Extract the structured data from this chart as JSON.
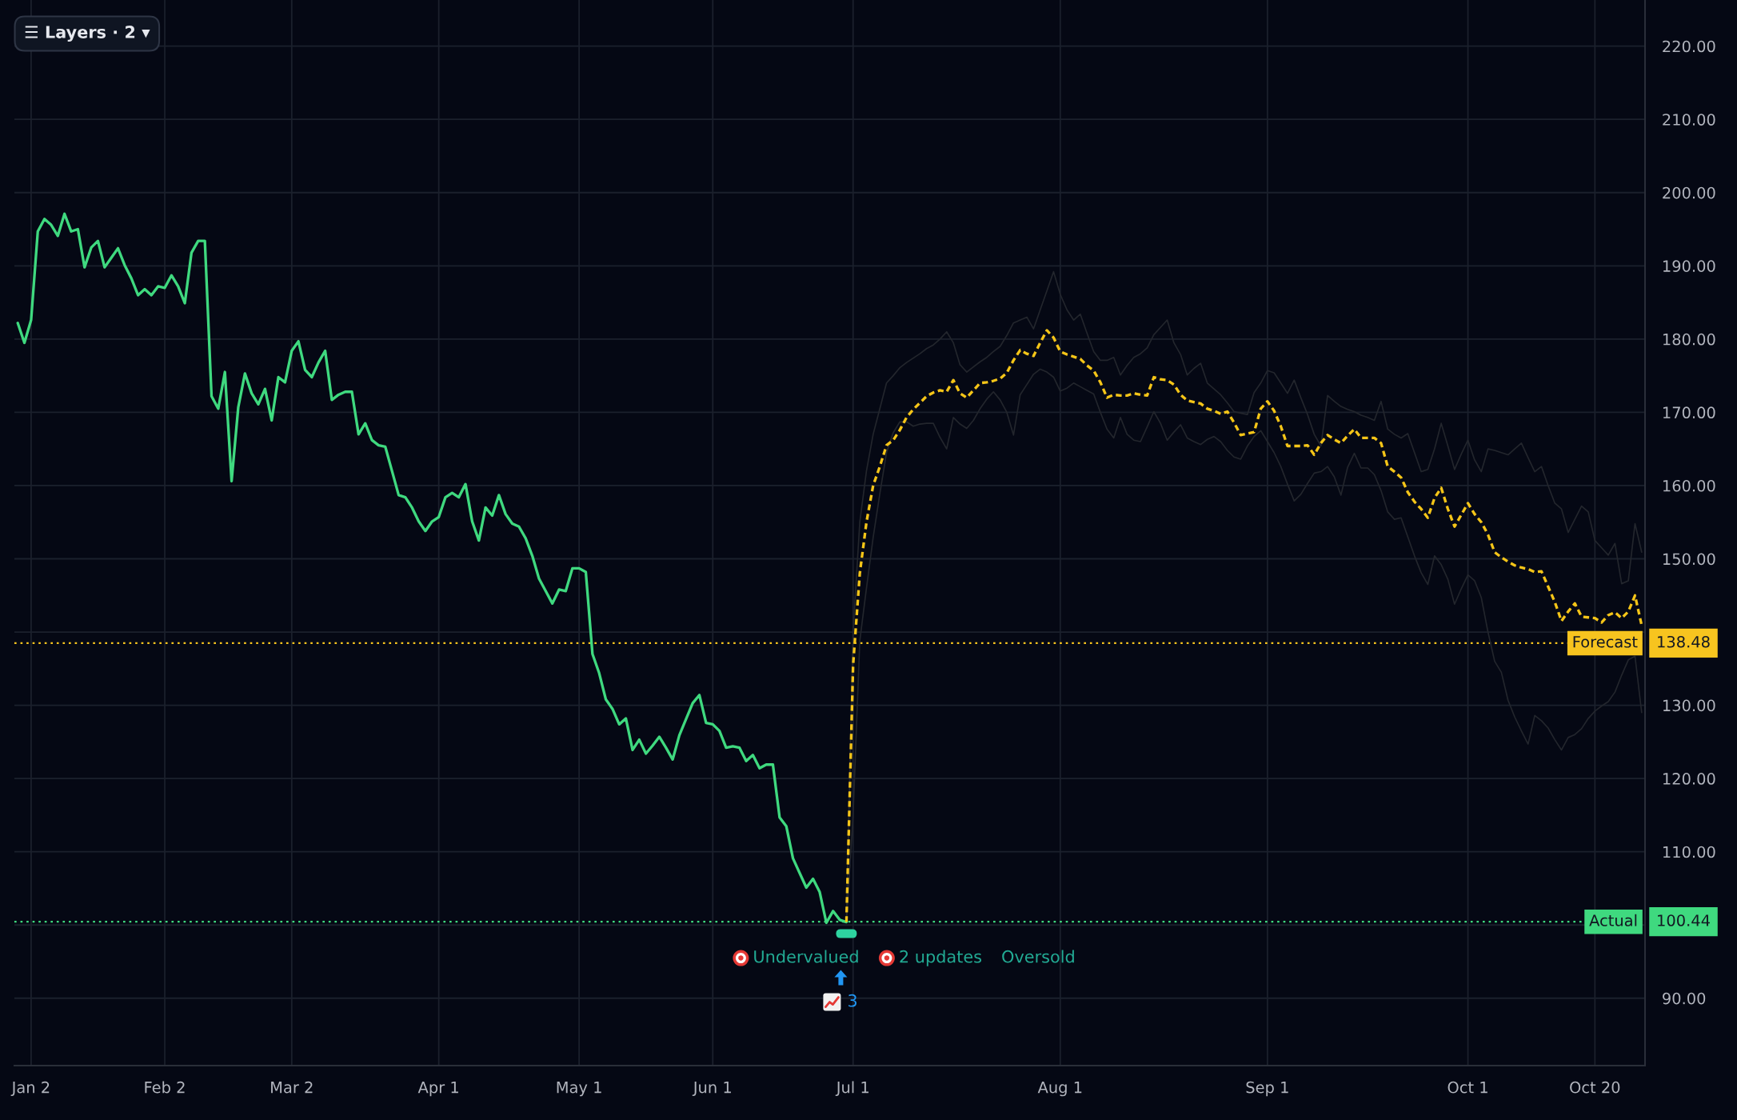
{
  "chart_data": {
    "type": "line",
    "categories": [
      null,
      null,
      "Jan 2",
      null,
      null,
      null,
      null,
      null,
      null,
      null,
      null,
      null,
      null,
      null,
      null,
      null,
      null,
      null,
      null,
      null,
      null,
      null,
      "Feb 2",
      null,
      null,
      null,
      null,
      null,
      null,
      null,
      null,
      null,
      null,
      null,
      null,
      null,
      null,
      null,
      null,
      null,
      null,
      "Mar 2",
      null,
      null,
      null,
      null,
      null,
      null,
      null,
      null,
      null,
      null,
      null,
      null,
      null,
      null,
      null,
      null,
      null,
      null,
      null,
      null,
      null,
      "Apr 1",
      null,
      null,
      null,
      null,
      null,
      null,
      null,
      null,
      null,
      null,
      null,
      null,
      null,
      null,
      null,
      null,
      null,
      null,
      null,
      null,
      "May 1",
      null,
      null,
      null,
      null,
      null,
      null,
      null,
      null,
      null,
      null,
      null,
      null,
      null,
      null,
      null,
      null,
      null,
      null,
      null,
      "Jun 1",
      null,
      null,
      null,
      null,
      null,
      null,
      null,
      null,
      null,
      null,
      null,
      null,
      null,
      null,
      null,
      null,
      null,
      null,
      null,
      null,
      "Jul 1",
      null,
      null,
      null,
      null,
      null,
      null,
      null,
      null,
      null,
      null,
      null,
      null,
      null,
      null,
      null,
      null,
      null,
      null,
      null,
      null,
      null,
      null,
      null,
      null,
      null,
      null,
      null,
      null,
      null,
      null,
      "Aug 1",
      null,
      null,
      null,
      null,
      null,
      null,
      null,
      null,
      null,
      null,
      null,
      null,
      null,
      null,
      null,
      null,
      null,
      null,
      null,
      null,
      null,
      null,
      null,
      null,
      null,
      null,
      null,
      null,
      null,
      null,
      "Sep 1",
      null,
      null,
      null,
      null,
      null,
      null,
      null,
      null,
      null,
      null,
      null,
      null,
      null,
      null,
      null,
      null,
      null,
      null,
      null,
      null,
      null,
      null,
      null,
      null,
      null,
      null,
      null,
      null,
      null,
      "Oct 1",
      null,
      null,
      null,
      null,
      null,
      null,
      null,
      null,
      null,
      null,
      null,
      null,
      null,
      null,
      null,
      null,
      null,
      null,
      "Oct 20",
      null,
      null,
      null,
      null,
      null,
      null,
      null
    ],
    "ylim": [
      80.8,
      226.3
    ],
    "yticks": [
      {
        "value": 90,
        "label": "90.00"
      },
      {
        "value": 100,
        "label": null
      },
      {
        "value": 110,
        "label": "110.00"
      },
      {
        "value": 120,
        "label": "120.00"
      },
      {
        "value": 130,
        "label": "130.00"
      },
      {
        "value": 140,
        "label": null
      },
      {
        "value": 150,
        "label": "150.00"
      },
      {
        "value": 160,
        "label": "160.00"
      },
      {
        "value": 170,
        "label": "170.00"
      },
      {
        "value": 180,
        "label": "180.00"
      },
      {
        "value": 190,
        "label": "190.00"
      },
      {
        "value": 200,
        "label": "200.00"
      },
      {
        "value": 210,
        "label": "210.00"
      },
      {
        "value": 220,
        "label": "220.00"
      }
    ],
    "grid": true,
    "series": [
      {
        "color": "#23262d",
        "line_style": "solid",
        "values": [
          null,
          null,
          null,
          null,
          null,
          null,
          null,
          null,
          null,
          null,
          null,
          null,
          null,
          null,
          null,
          null,
          null,
          null,
          null,
          null,
          null,
          null,
          null,
          null,
          null,
          null,
          null,
          null,
          null,
          null,
          null,
          null,
          null,
          null,
          null,
          null,
          null,
          null,
          null,
          null,
          null,
          null,
          null,
          null,
          null,
          null,
          null,
          null,
          null,
          null,
          null,
          null,
          null,
          null,
          null,
          null,
          null,
          null,
          null,
          null,
          null,
          null,
          null,
          null,
          null,
          null,
          null,
          null,
          null,
          null,
          null,
          null,
          null,
          null,
          null,
          null,
          null,
          null,
          null,
          null,
          null,
          null,
          null,
          null,
          null,
          null,
          null,
          null,
          null,
          null,
          null,
          null,
          null,
          null,
          null,
          null,
          null,
          null,
          null,
          null,
          null,
          null,
          null,
          null,
          null,
          null,
          null,
          null,
          null,
          null,
          null,
          null,
          null,
          null,
          null,
          null,
          null,
          null,
          null,
          null,
          null,
          null,
          null,
          null,
          100.4,
          140.0,
          155.0,
          162.0,
          167.0,
          170.5,
          174.0,
          175.0,
          176.1,
          176.8,
          177.4,
          178.0,
          178.7,
          179.2,
          180.0,
          181.0,
          179.5,
          176.5,
          175.5,
          176.2,
          176.9,
          177.5,
          178.3,
          179.0,
          180.5,
          182.2,
          182.6,
          183.0,
          181.4,
          184.0,
          186.6,
          189.2,
          186.1,
          184.0,
          182.6,
          183.4,
          180.8,
          178.3,
          177.1,
          177.1,
          177.5,
          175.1,
          176.4,
          177.5,
          178.0,
          178.8,
          180.6,
          181.6,
          182.6,
          179.5,
          177.9,
          175.1,
          176.0,
          176.7,
          174.0,
          173.2,
          172.4,
          171.3,
          170.1,
          169.9,
          169.7,
          172.7,
          174.0,
          175.7,
          175.4,
          174.0,
          172.6,
          174.4,
          172.0,
          169.7,
          167.0,
          165.4,
          172.3,
          171.5,
          170.8,
          170.4,
          170.1,
          169.6,
          169.3,
          168.9,
          171.5,
          167.7,
          167.0,
          166.5,
          167.1,
          164.5,
          161.9,
          162.2,
          165.0,
          168.5,
          165.4,
          162.2,
          164.3,
          166.2,
          163.5,
          161.9,
          165.0,
          164.8,
          164.5,
          164.2,
          165.0,
          165.8,
          163.8,
          161.9,
          162.6,
          160.0,
          157.6,
          156.8,
          153.6,
          155.4,
          157.2,
          156.4,
          152.5,
          151.5,
          150.5,
          152.1,
          146.6,
          147.0,
          154.8,
          150.9
        ]
      },
      {
        "color": "#23262d",
        "line_style": "solid",
        "values": [
          null,
          null,
          null,
          null,
          null,
          null,
          null,
          null,
          null,
          null,
          null,
          null,
          null,
          null,
          null,
          null,
          null,
          null,
          null,
          null,
          null,
          null,
          null,
          null,
          null,
          null,
          null,
          null,
          null,
          null,
          null,
          null,
          null,
          null,
          null,
          null,
          null,
          null,
          null,
          null,
          null,
          null,
          null,
          null,
          null,
          null,
          null,
          null,
          null,
          null,
          null,
          null,
          null,
          null,
          null,
          null,
          null,
          null,
          null,
          null,
          null,
          null,
          null,
          null,
          null,
          null,
          null,
          null,
          null,
          null,
          null,
          null,
          null,
          null,
          null,
          null,
          null,
          null,
          null,
          null,
          null,
          null,
          null,
          null,
          null,
          null,
          null,
          null,
          null,
          null,
          null,
          null,
          null,
          null,
          null,
          null,
          null,
          null,
          null,
          null,
          null,
          null,
          null,
          null,
          null,
          null,
          null,
          null,
          null,
          null,
          null,
          null,
          null,
          null,
          null,
          null,
          null,
          null,
          null,
          null,
          null,
          null,
          null,
          null,
          100.4,
          115.0,
          138.8,
          146.0,
          152.9,
          158.9,
          164.5,
          167.2,
          168.7,
          168.7,
          168.1,
          168.4,
          168.5,
          168.5,
          166.6,
          165.0,
          169.3,
          168.4,
          167.8,
          168.9,
          170.5,
          171.8,
          172.8,
          171.7,
          170.0,
          166.9,
          172.4,
          173.8,
          175.2,
          175.9,
          175.5,
          174.8,
          172.9,
          173.3,
          174.0,
          173.5,
          173.0,
          172.5,
          170.0,
          167.7,
          166.5,
          169.3,
          167.0,
          166.2,
          166.0,
          168.0,
          170.1,
          168.5,
          166.2,
          167.3,
          168.3,
          166.5,
          166.0,
          165.6,
          166.3,
          166.7,
          166.0,
          164.8,
          163.9,
          163.6,
          165.4,
          166.7,
          167.5,
          166.0,
          164.5,
          162.6,
          160.2,
          157.9,
          158.8,
          160.3,
          161.7,
          161.9,
          162.6,
          161.2,
          158.7,
          162.5,
          164.4,
          162.4,
          162.4,
          161.5,
          159.3,
          156.4,
          155.4,
          155.6,
          153.0,
          150.4,
          148.1,
          146.5,
          150.4,
          149.2,
          147.2,
          143.8,
          145.9,
          147.8,
          147.0,
          144.7,
          140.0,
          136.0,
          134.5,
          130.7,
          128.4,
          126.5,
          124.7,
          128.6,
          127.9,
          126.9,
          125.3,
          123.9,
          125.6,
          126.0,
          126.8,
          128.2,
          129.2,
          129.9,
          130.5,
          131.8,
          134.1,
          136.2,
          136.7,
          129.0
        ]
      },
      {
        "color": "#3fd97f",
        "line_style": "solid",
        "values": [
          182.2,
          179.5,
          182.6,
          194.7,
          196.4,
          195.6,
          194.1,
          197.1,
          194.7,
          195.0,
          189.8,
          192.5,
          193.4,
          189.8,
          191.1,
          192.4,
          190.1,
          188.3,
          186.0,
          186.8,
          186.0,
          187.2,
          187.0,
          188.7,
          187.2,
          184.9,
          191.8,
          193.4,
          193.4,
          172.2,
          170.5,
          175.5,
          160.6,
          170.7,
          175.3,
          172.6,
          171.1,
          173.2,
          168.9,
          174.8,
          174.1,
          178.4,
          179.7,
          175.8,
          174.8,
          176.8,
          178.4,
          171.7,
          172.4,
          172.8,
          172.8,
          167.0,
          168.5,
          166.2,
          165.5,
          165.3,
          162.0,
          158.7,
          158.4,
          157.0,
          155.1,
          153.8,
          155.1,
          155.7,
          158.4,
          159.0,
          158.4,
          160.2,
          155.1,
          152.5,
          157.0,
          155.9,
          158.7,
          156.1,
          154.8,
          154.4,
          152.8,
          150.4,
          147.3,
          145.6,
          143.9,
          145.8,
          145.6,
          148.7,
          148.7,
          148.2,
          137.0,
          134.4,
          130.8,
          129.5,
          127.4,
          128.2,
          123.9,
          125.3,
          123.4,
          124.5,
          125.7,
          124.2,
          122.6,
          125.9,
          128.1,
          130.3,
          131.4,
          127.6,
          127.4,
          126.5,
          124.2,
          124.4,
          124.2,
          122.4,
          123.2,
          121.4,
          121.9,
          121.9,
          114.7,
          113.5,
          109.1,
          107.1,
          105.1,
          106.3,
          104.5,
          100.3,
          101.9,
          100.7,
          100.4,
          null,
          null,
          null,
          null,
          null,
          null,
          null,
          null,
          null,
          null,
          null,
          null,
          null,
          null,
          null,
          null,
          null,
          null,
          null,
          null,
          null,
          null,
          null,
          null,
          null,
          null,
          null,
          null,
          null,
          null,
          null,
          null,
          null,
          null,
          null,
          null,
          null,
          null,
          null,
          null,
          null,
          null,
          null,
          null,
          null,
          null,
          null,
          null,
          null,
          null,
          null,
          null,
          null,
          null,
          null,
          null,
          null,
          null,
          null,
          null,
          null,
          null,
          null,
          null,
          null,
          null,
          null,
          null,
          null,
          null,
          null,
          null,
          null,
          null,
          null,
          null,
          null,
          null,
          null,
          null,
          null,
          null,
          null,
          null,
          null,
          null,
          null,
          null,
          null,
          null,
          null,
          null,
          null,
          null,
          null,
          null,
          null,
          null,
          null,
          null,
          null,
          null,
          null,
          null,
          null,
          null,
          null,
          null,
          null,
          null,
          null,
          null,
          null,
          null,
          null,
          null,
          null,
          null,
          null
        ]
      },
      {
        "color": "#f5c518",
        "line_style": "dashed",
        "values": [
          null,
          null,
          null,
          null,
          null,
          null,
          null,
          null,
          null,
          null,
          null,
          null,
          null,
          null,
          null,
          null,
          null,
          null,
          null,
          null,
          null,
          null,
          null,
          null,
          null,
          null,
          null,
          null,
          null,
          null,
          null,
          null,
          null,
          null,
          null,
          null,
          null,
          null,
          null,
          null,
          null,
          null,
          null,
          null,
          null,
          null,
          null,
          null,
          null,
          null,
          null,
          null,
          null,
          null,
          null,
          null,
          null,
          null,
          null,
          null,
          null,
          null,
          null,
          null,
          null,
          null,
          null,
          null,
          null,
          null,
          null,
          null,
          null,
          null,
          null,
          null,
          null,
          null,
          null,
          null,
          null,
          null,
          null,
          null,
          null,
          null,
          null,
          null,
          null,
          null,
          null,
          null,
          null,
          null,
          null,
          null,
          null,
          null,
          null,
          null,
          null,
          null,
          null,
          null,
          null,
          null,
          null,
          null,
          null,
          null,
          null,
          null,
          null,
          null,
          null,
          null,
          null,
          null,
          null,
          null,
          null,
          null,
          null,
          null,
          100.4,
          135.5,
          148.0,
          155.0,
          160.0,
          162.6,
          165.5,
          166.2,
          167.6,
          169.3,
          170.4,
          171.3,
          172.2,
          172.7,
          173.0,
          172.8,
          174.4,
          172.6,
          172.0,
          173.0,
          174.0,
          174.1,
          174.3,
          174.6,
          175.4,
          177.1,
          178.5,
          178.0,
          177.7,
          179.5,
          181.2,
          180.2,
          178.3,
          177.9,
          177.6,
          177.3,
          176.4,
          175.7,
          174.1,
          172.0,
          172.4,
          172.3,
          172.3,
          172.6,
          172.4,
          172.3,
          174.8,
          174.5,
          174.4,
          173.8,
          172.4,
          171.6,
          171.4,
          171.2,
          170.5,
          170.2,
          169.8,
          170.1,
          168.6,
          166.9,
          167.1,
          167.3,
          170.5,
          171.5,
          170.2,
          168.1,
          165.4,
          165.4,
          165.4,
          165.5,
          164.2,
          165.8,
          166.9,
          166.3,
          165.8,
          166.8,
          167.7,
          166.5,
          166.5,
          166.5,
          165.8,
          162.6,
          161.9,
          161.1,
          159.1,
          157.8,
          156.8,
          155.6,
          158.3,
          159.7,
          156.8,
          154.4,
          156.0,
          157.6,
          156.1,
          155.0,
          153.3,
          150.9,
          150.2,
          149.6,
          149.1,
          148.8,
          148.6,
          148.2,
          148.3,
          146.2,
          144.1,
          141.5,
          142.8,
          143.9,
          142.1,
          142.0,
          141.9,
          141.3,
          142.3,
          142.7,
          141.9,
          142.8,
          145.0,
          140.9
        ]
      }
    ],
    "ref_lines": [
      {
        "axis": "y",
        "value": 138.48,
        "label": "Forecast",
        "color": "#f7c41f",
        "line_style": "dotted"
      },
      {
        "axis": "y",
        "value": 100.44,
        "label": "Actual",
        "color": "#3fd97f",
        "line_style": "dotted"
      }
    ],
    "annotations": [
      "☰ Layers · 2 ▾",
      "Undervalued",
      "2 updates",
      "Oversold",
      "3",
      "138.48",
      "100.44"
    ]
  }
}
